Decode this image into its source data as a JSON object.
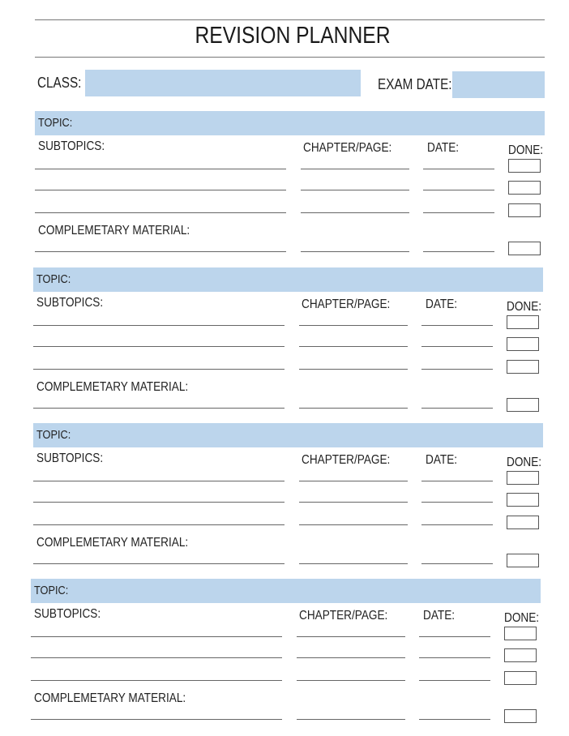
{
  "title": "REVISION PLANNER",
  "class_label": "CLASS:",
  "class_value": "",
  "exam_date_label": "EXAM DATE:",
  "exam_date_value": "",
  "accent_color": "#bcd5ec",
  "sections": [
    {
      "topic_label": "TOPIC:",
      "subtopics_label": "SUBTOPICS:",
      "chapter_label": "CHAPTER/PAGE:",
      "date_label": "DATE:",
      "done_label": "DONE:",
      "material_label": "COMPLEMETARY MATERIAL:"
    },
    {
      "topic_label": "TOPIC:",
      "subtopics_label": "SUBTOPICS:",
      "chapter_label": "CHAPTER/PAGE:",
      "date_label": "DATE:",
      "done_label": "DONE:",
      "material_label": "COMPLEMETARY MATERIAL:"
    },
    {
      "topic_label": "TOPIC:",
      "subtopics_label": "SUBTOPICS:",
      "chapter_label": "CHAPTER/PAGE:",
      "date_label": "DATE:",
      "done_label": "DONE:",
      "material_label": "COMPLEMETARY MATERIAL:"
    },
    {
      "topic_label": "TOPIC:",
      "subtopics_label": "SUBTOPICS:",
      "chapter_label": "CHAPTER/PAGE:",
      "date_label": "DATE:",
      "done_label": "DONE:",
      "material_label": "COMPLEMETARY MATERIAL:"
    }
  ]
}
